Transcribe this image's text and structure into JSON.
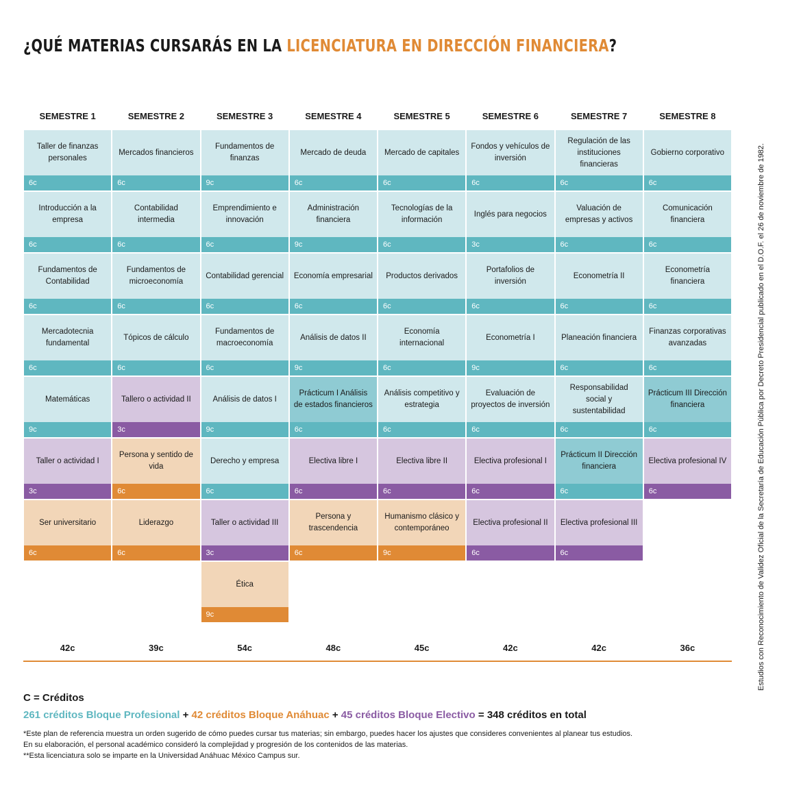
{
  "title": {
    "prefix": "¿QUÉ MATERIAS CURSARÁS EN LA ",
    "highlight": "LICENCIATURA EN DIRECCIÓN FINANCIERA",
    "suffix": "?"
  },
  "colors": {
    "profesional_light": "#d0e8ec",
    "profesional_dark": "#5fb7c0",
    "practicum_light": "#8fcbd3",
    "electivo_light": "#d6c6df",
    "electivo_dark": "#8a5ba3",
    "anahuac_light": "#f2d6b8",
    "anahuac_dark": "#e08a35"
  },
  "semesters": [
    {
      "label": "SEMESTRE 1",
      "total": "42c",
      "courses": [
        {
          "name": "Taller de finanzas personales",
          "credits": "6c",
          "block": "prof"
        },
        {
          "name": "Introducción a la empresa",
          "credits": "6c",
          "block": "prof"
        },
        {
          "name": "Fundamentos de Contabilidad",
          "credits": "6c",
          "block": "prof"
        },
        {
          "name": "Mercadotecnia fundamental",
          "credits": "6c",
          "block": "prof"
        },
        {
          "name": "Matemáticas",
          "credits": "9c",
          "block": "prof"
        },
        {
          "name": "Taller o actividad I",
          "credits": "3c",
          "block": "elec"
        },
        {
          "name": "Ser universitario",
          "credits": "6c",
          "block": "anah"
        }
      ]
    },
    {
      "label": "SEMESTRE 2",
      "total": "39c",
      "courses": [
        {
          "name": "Mercados financieros",
          "credits": "6c",
          "block": "prof"
        },
        {
          "name": "Contabilidad intermedia",
          "credits": "6c",
          "block": "prof"
        },
        {
          "name": "Fundamentos de microeconomía",
          "credits": "6c",
          "block": "prof"
        },
        {
          "name": "Tópicos de cálculo",
          "credits": "6c",
          "block": "prof"
        },
        {
          "name": "Tallero o actividad II",
          "credits": "3c",
          "block": "elec"
        },
        {
          "name": "Persona y sentido de vida",
          "credits": "6c",
          "block": "anah"
        },
        {
          "name": "Liderazgo",
          "credits": "6c",
          "block": "anah"
        }
      ]
    },
    {
      "label": "SEMESTRE 3",
      "total": "54c",
      "courses": [
        {
          "name": "Fundamentos de finanzas",
          "credits": "9c",
          "block": "prof"
        },
        {
          "name": "Emprendimiento e innovación",
          "credits": "6c",
          "block": "prof"
        },
        {
          "name": "Contabilidad gerencial",
          "credits": "6c",
          "block": "prof"
        },
        {
          "name": "Fundamentos de macroeconomía",
          "credits": "6c",
          "block": "prof"
        },
        {
          "name": "Análisis de datos I",
          "credits": "9c",
          "block": "prof"
        },
        {
          "name": "Derecho y empresa",
          "credits": "6c",
          "block": "prof"
        },
        {
          "name": "Taller o actividad III",
          "credits": "3c",
          "block": "elec"
        },
        {
          "name": "Ética",
          "credits": "9c",
          "block": "anah"
        }
      ]
    },
    {
      "label": "SEMESTRE 4",
      "total": "48c",
      "courses": [
        {
          "name": "Mercado de deuda",
          "credits": "6c",
          "block": "prof"
        },
        {
          "name": "Administración financiera",
          "credits": "9c",
          "block": "prof"
        },
        {
          "name": "Economía empresarial",
          "credits": "6c",
          "block": "prof"
        },
        {
          "name": "Análisis de datos II",
          "credits": "9c",
          "block": "prof"
        },
        {
          "name": "Prácticum I Análisis de estados financieros",
          "credits": "6c",
          "block": "prac"
        },
        {
          "name": "Electiva libre I",
          "credits": "6c",
          "block": "elec"
        },
        {
          "name": "Persona y trascendencia",
          "credits": "6c",
          "block": "anah"
        }
      ]
    },
    {
      "label": "SEMESTRE 5",
      "total": "45c",
      "courses": [
        {
          "name": "Mercado de capitales",
          "credits": "6c",
          "block": "prof"
        },
        {
          "name": "Tecnologías de la información",
          "credits": "6c",
          "block": "prof"
        },
        {
          "name": "Productos derivados",
          "credits": "6c",
          "block": "prof"
        },
        {
          "name": "Economía internacional",
          "credits": "6c",
          "block": "prof"
        },
        {
          "name": "Análisis competitivo y estrategia",
          "credits": "6c",
          "block": "prof"
        },
        {
          "name": "Electiva libre II",
          "credits": "6c",
          "block": "elec"
        },
        {
          "name": "Humanismo clásico y contemporáneo",
          "credits": "9c",
          "block": "anah"
        }
      ]
    },
    {
      "label": "SEMESTRE 6",
      "total": "42c",
      "courses": [
        {
          "name": "Fondos y vehículos de inversión",
          "credits": "6c",
          "block": "prof"
        },
        {
          "name": "Inglés para negocios",
          "credits": "3c",
          "block": "prof"
        },
        {
          "name": "Portafolios de inversión",
          "credits": "6c",
          "block": "prof"
        },
        {
          "name": "Econometría I",
          "credits": "9c",
          "block": "prof"
        },
        {
          "name": "Evaluación de proyectos de inversión",
          "credits": "6c",
          "block": "prof"
        },
        {
          "name": "Electiva profesional I",
          "credits": "6c",
          "block": "elec"
        },
        {
          "name": "Electiva profesional II",
          "credits": "6c",
          "block": "elec"
        }
      ]
    },
    {
      "label": "SEMESTRE 7",
      "total": "42c",
      "courses": [
        {
          "name": "Regulación de las instituciones financieras",
          "credits": "6c",
          "block": "prof"
        },
        {
          "name": "Valuación de empresas y activos",
          "credits": "6c",
          "block": "prof"
        },
        {
          "name": "Econometría II",
          "credits": "6c",
          "block": "prof"
        },
        {
          "name": "Planeación financiera",
          "credits": "6c",
          "block": "prof"
        },
        {
          "name": "Responsabilidad social y sustentabilidad",
          "credits": "6c",
          "block": "prof"
        },
        {
          "name": "Prácticum II Dirección financiera",
          "credits": "6c",
          "block": "prac"
        },
        {
          "name": "Electiva profesional III",
          "credits": "6c",
          "block": "elec"
        }
      ]
    },
    {
      "label": "SEMESTRE 8",
      "total": "36c",
      "courses": [
        {
          "name": "Gobierno corporativo",
          "credits": "6c",
          "block": "prof"
        },
        {
          "name": "Comunicación financiera",
          "credits": "6c",
          "block": "prof"
        },
        {
          "name": "Econometría financiera",
          "credits": "6c",
          "block": "prof"
        },
        {
          "name": "Finanzas corporativas avanzadas",
          "credits": "6c",
          "block": "prof"
        },
        {
          "name": "Prácticum III Dirección financiera",
          "credits": "6c",
          "block": "prac"
        },
        {
          "name": "Electiva profesional IV",
          "credits": "6c",
          "block": "elec"
        }
      ]
    }
  ],
  "legend": {
    "title": "C = Créditos",
    "prof": "261 créditos Bloque Profesional",
    "plus1": " + ",
    "anah": "42 créditos Bloque Anáhuac",
    "plus2": " + ",
    "elec": "45 créditos Bloque Electivo",
    "equals": " = ",
    "total": "348 créditos en total"
  },
  "notes": [
    "*Este plan de referencia muestra un orden sugerido de cómo puedes cursar tus materias; sin embargo, puedes hacer los ajustes que consideres convenientes al planear tus estudios.",
    "En su elaboración, el personal académico consideró la complejidad y progresión de los contenidos de las materias.",
    "**Esta licenciatura solo se imparte en la Universidad Anáhuac México Campus sur."
  ],
  "side_note": "Estudios con Reconocimiento de Validez Oficial de la Secretaría de Educación Pública por Decreto Presidencial publicado en el D.O.F. el 26 de noviembre de 1982."
}
